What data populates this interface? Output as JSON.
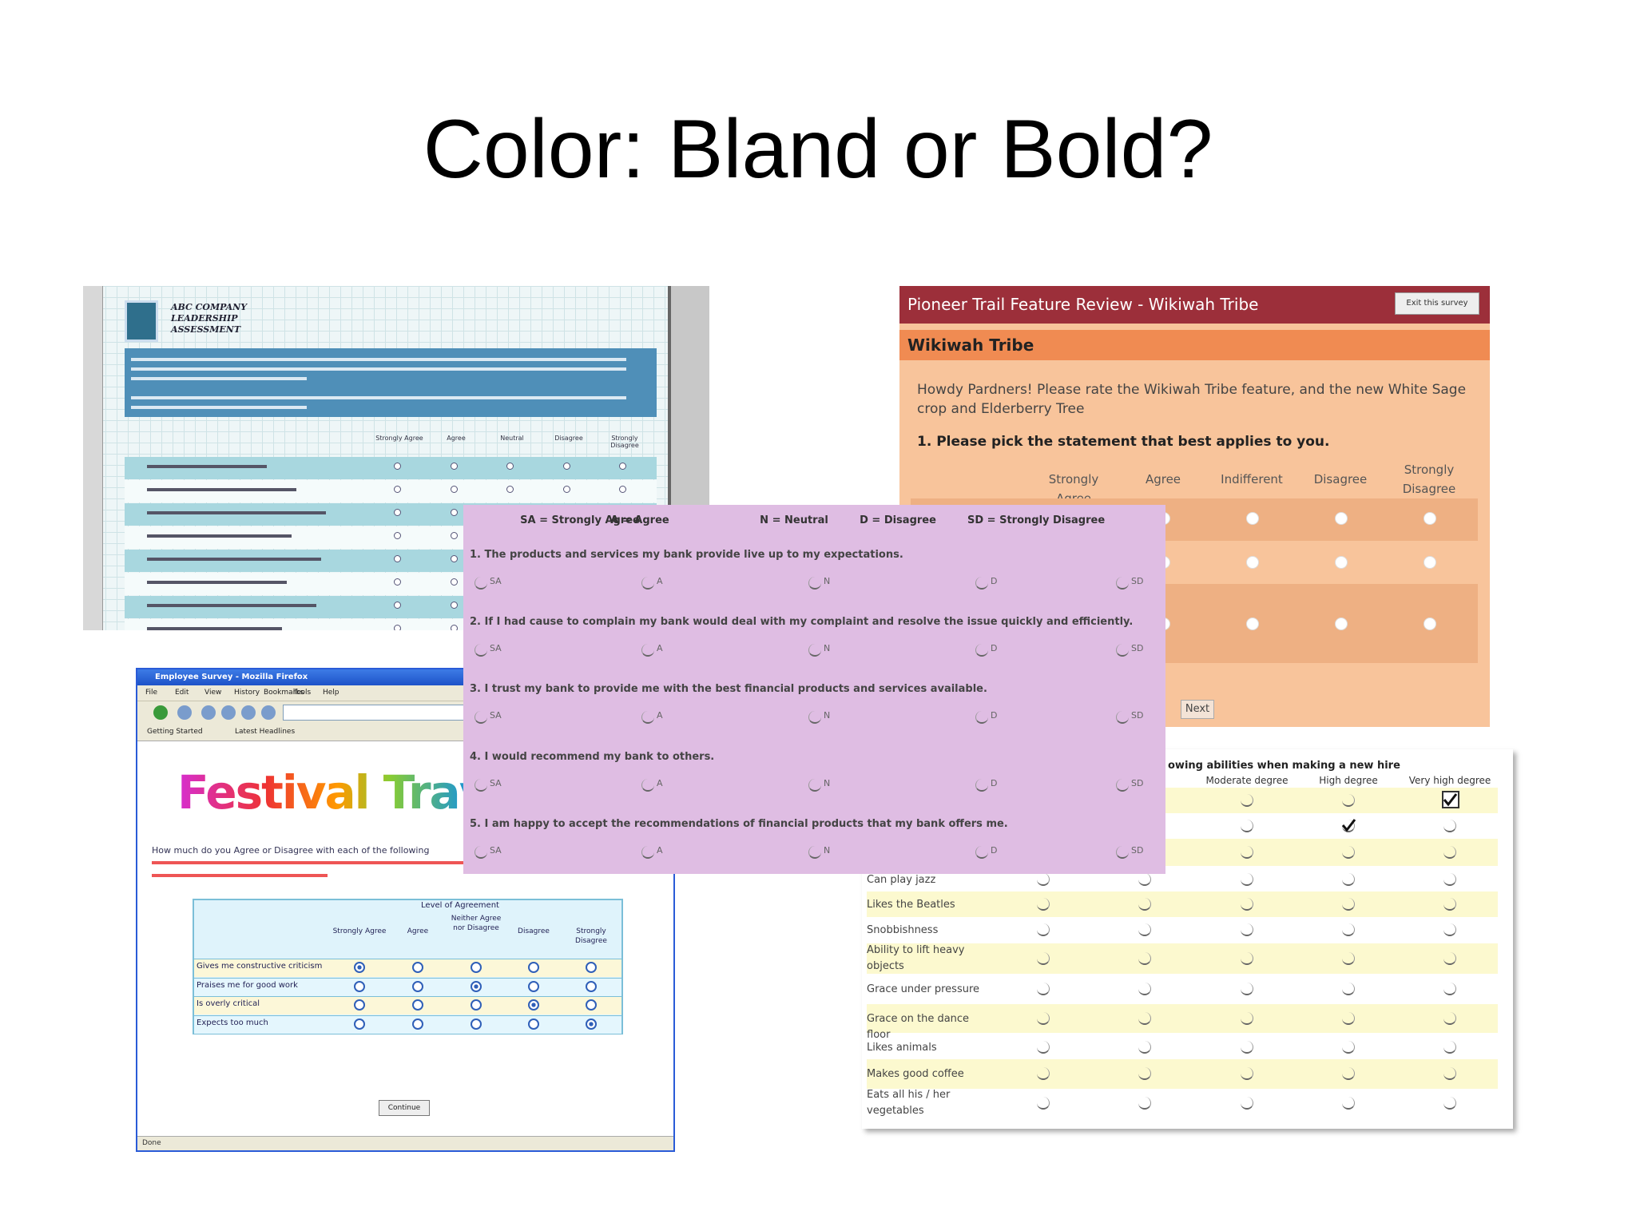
{
  "title": "Color: Bland or Bold?",
  "blue_form": {
    "header": [
      "ABC COMPANY",
      "LEADERSHIP",
      "ASSESSMENT"
    ],
    "columns": [
      "Strongly Agree",
      "Agree",
      "Neutral",
      "Disagree",
      "Strongly Disagree"
    ]
  },
  "orange_form": {
    "header": "Pioneer Trail Feature Review - Wikiwah Tribe",
    "button": "Exit this survey",
    "section": "Wikiwah Tribe",
    "intro": "Howdy Pardners! Please rate the Wikiwah Tribe feature, and the new White Sage crop and Elderberry Tree",
    "question": "1. Please pick the statement that best applies to you.",
    "columns": [
      "Strongly Agree",
      "Agree",
      "Indifferent",
      "Disagree",
      "Strongly Disagree"
    ],
    "next": "Next"
  },
  "firefox_form": {
    "window_title": "Employee Survey - Mozilla Firefox",
    "menu": [
      "File",
      "Edit",
      "View",
      "History",
      "Bookmarks",
      "Tools",
      "Help"
    ],
    "bookmarks": [
      "Getting Started",
      "Latest Headlines"
    ],
    "logo": "Festival Travel",
    "question": "How much do you Agree or Disagree with each of the following",
    "group_header": "Level of Agreement",
    "columns": [
      "Strongly Agree",
      "Agree",
      "Neither Agree nor Disagree",
      "Disagree",
      "Strongly Disagree"
    ],
    "rows": [
      "Gives me constructive criticism",
      "Praises me for good work",
      "Is overly critical",
      "Expects too much"
    ],
    "button": "Continue",
    "status": "Done"
  },
  "yellow_form": {
    "heading": "owing abilities when making a new hire",
    "columns": [
      "Moderate degree",
      "High degree",
      "Very high degree"
    ],
    "rows": [
      "Can play jazz",
      "Likes the Beatles",
      "Snobbishness",
      "Ability to lift heavy objects",
      "Grace under pressure",
      "Grace on the dance floor",
      "Likes animals",
      "Makes good coffee",
      "Eats all his / her vegetables"
    ]
  },
  "purple_form": {
    "legend": [
      "SA = Strongly Agree",
      "A = Agree",
      "N = Neutral",
      "D = Disagree",
      "SD = Strongly Disagree"
    ],
    "questions": [
      "1. The products and services my bank provide live up to my expectations.",
      "2. If I had cause to complain my bank would deal with my complaint and resolve the issue quickly and efficiently.",
      "3. I trust my bank to provide me with the best financial products and services available.",
      "4. I would recommend my bank to others.",
      "5. I am happy to accept the recommendations of financial products that my bank offers me."
    ],
    "options": [
      "SA",
      "A",
      "N",
      "D",
      "SD"
    ]
  }
}
